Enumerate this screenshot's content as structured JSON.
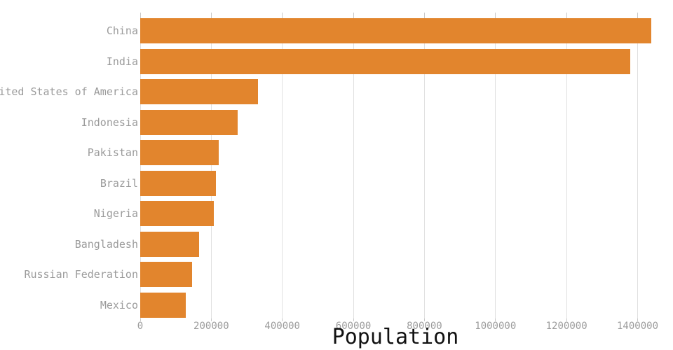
{
  "chart_data": {
    "type": "bar",
    "orientation": "horizontal",
    "title": "",
    "xlabel": "Population",
    "ylabel": "",
    "categories": [
      "China",
      "India",
      "United States of America",
      "Indonesia",
      "Pakistan",
      "Brazil",
      "Nigeria",
      "Bangladesh",
      "Russian Federation",
      "Mexico"
    ],
    "values": [
      1439324,
      1380004,
      331003,
      273524,
      220892,
      212559,
      206140,
      164689,
      145934,
      128933
    ],
    "x_ticks": [
      0,
      200000,
      400000,
      600000,
      800000,
      1000000,
      1200000,
      1400000
    ],
    "x_tick_labels": [
      "0",
      "200000",
      "400000",
      "600000",
      "800000",
      "1000000",
      "1200000",
      "1400000"
    ],
    "xlim": [
      0,
      1400000
    ],
    "grid": "vertical-only",
    "legend": false
  },
  "colors": {
    "background": "#FFFFFF",
    "bar_fill": "#E2852D",
    "gridline": "#E0E0E0",
    "tick_mark": "#C8C8C8",
    "axis_text": "#9B9B9B",
    "title_text": "#111111"
  }
}
